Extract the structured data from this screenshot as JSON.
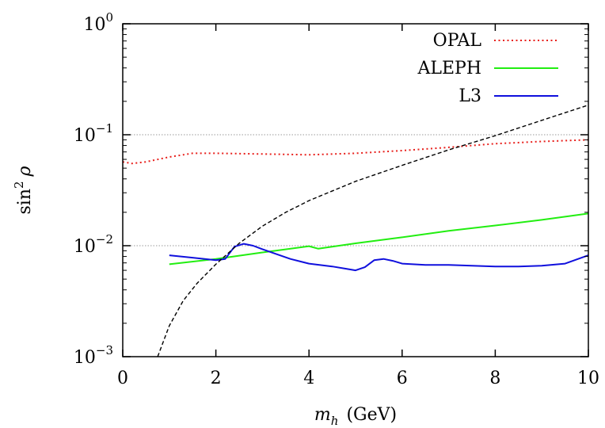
{
  "chart_data": {
    "type": "line",
    "xlabel": {
      "var": "m",
      "sub": "h",
      "unit": "(GeV)"
    },
    "ylabel": {
      "func": "sin",
      "sup": "2",
      "var": "ρ"
    },
    "xlim": [
      0,
      10
    ],
    "ylim": [
      0.001,
      1
    ],
    "yscale": "log",
    "xticks": [
      0,
      2,
      4,
      6,
      8,
      10
    ],
    "yticks": [
      {
        "value": 0.001,
        "base": "10",
        "exp": "−3"
      },
      {
        "value": 0.01,
        "base": "10",
        "exp": "−2"
      },
      {
        "value": 0.1,
        "base": "10",
        "exp": "−1"
      },
      {
        "value": 1,
        "base": "10",
        "exp": "0"
      }
    ],
    "gridlines_y": [
      0.01,
      0.1
    ],
    "legend_position": "top-right",
    "series": [
      {
        "name": "OPAL",
        "color": "#e8201c",
        "style": "dotted",
        "x": [
          0.0,
          0.2,
          0.5,
          1.0,
          1.5,
          2.0,
          3.0,
          4.0,
          5.0,
          6.0,
          7.0,
          8.0,
          9.0,
          10.0
        ],
        "y": [
          0.057,
          0.055,
          0.057,
          0.063,
          0.068,
          0.068,
          0.067,
          0.066,
          0.068,
          0.072,
          0.077,
          0.083,
          0.087,
          0.09
        ]
      },
      {
        "name": "ALEPH",
        "color": "#22ee11",
        "style": "solid",
        "x": [
          1.0,
          2.0,
          3.0,
          4.0,
          4.2,
          5.0,
          6.0,
          7.0,
          8.0,
          9.0,
          10.0
        ],
        "y": [
          0.0068,
          0.0076,
          0.0087,
          0.0099,
          0.0094,
          0.0105,
          0.0119,
          0.0136,
          0.0152,
          0.0171,
          0.0195
        ]
      },
      {
        "name": "L3",
        "color": "#1010dd",
        "style": "solid",
        "x": [
          1.0,
          1.5,
          2.0,
          2.2,
          2.4,
          2.6,
          2.8,
          3.0,
          3.3,
          3.6,
          4.0,
          4.5,
          4.8,
          5.0,
          5.2,
          5.4,
          5.6,
          5.8,
          6.0,
          6.5,
          7.0,
          7.5,
          8.0,
          8.5,
          9.0,
          9.5,
          10.0
        ],
        "y": [
          0.0082,
          0.0078,
          0.0074,
          0.0076,
          0.0098,
          0.0104,
          0.01,
          0.0093,
          0.0084,
          0.0076,
          0.0069,
          0.0065,
          0.0062,
          0.006,
          0.0064,
          0.0074,
          0.0076,
          0.0073,
          0.0069,
          0.0067,
          0.0067,
          0.0066,
          0.0065,
          0.0065,
          0.0066,
          0.0069,
          0.0082
        ]
      },
      {
        "name": "",
        "color": "#000000",
        "style": "dashed",
        "x": [
          0.75,
          1.0,
          1.3,
          1.6,
          2.0,
          2.5,
          3.0,
          3.5,
          4.0,
          5.0,
          6.0,
          7.0,
          8.0,
          9.0,
          10.0
        ],
        "y": [
          0.001,
          0.0019,
          0.0032,
          0.0046,
          0.0068,
          0.0105,
          0.015,
          0.02,
          0.0255,
          0.038,
          0.053,
          0.073,
          0.098,
          0.135,
          0.185
        ]
      }
    ]
  }
}
